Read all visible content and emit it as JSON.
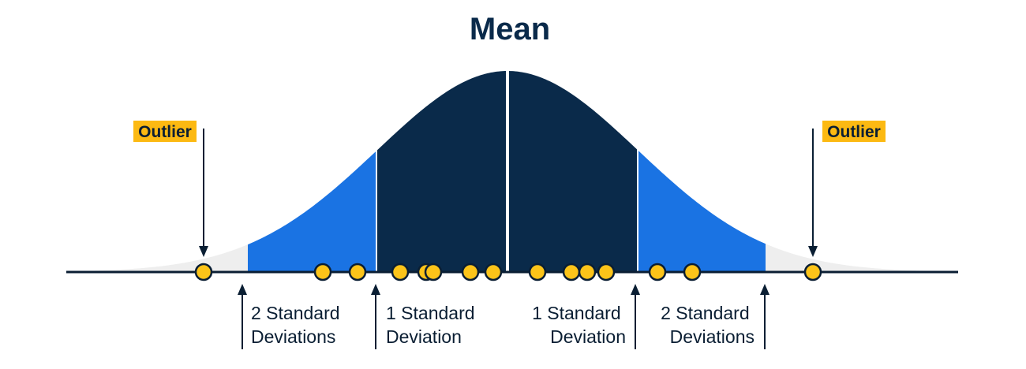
{
  "title": "Mean",
  "outlier_left": "Outlier",
  "outlier_right": "Outlier",
  "sd_labels": {
    "left_2": [
      "2 Standard",
      "Deviations"
    ],
    "left_1": [
      "1 Standard",
      "Deviation"
    ],
    "right_1": [
      "1 Standard",
      "Deviation"
    ],
    "right_2": [
      "2 Standard",
      "Deviations"
    ]
  },
  "colors": {
    "navy": "#0a2a4a",
    "blue": "#1a73e3",
    "tail": "#eeeeee",
    "dot": "#fcc419",
    "highlight": "#fcb912",
    "line": "#0a1e33"
  },
  "dots_px_hint": "drawn by script",
  "curve": {
    "regions": [
      "tail",
      "2sd",
      "1sd",
      "1sd",
      "2sd",
      "tail"
    ]
  }
}
